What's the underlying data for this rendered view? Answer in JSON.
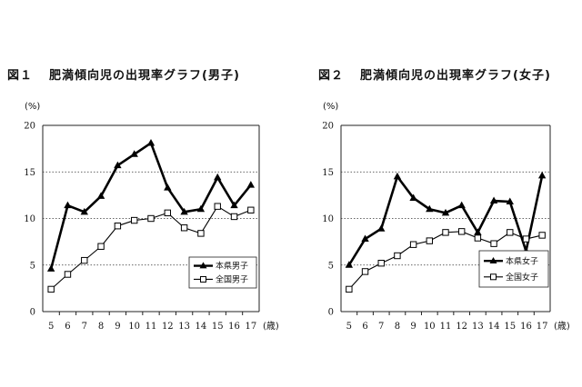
{
  "figures": [
    {
      "number": "図１",
      "title": "肥満傾向児の出現率グラフ(男子)"
    },
    {
      "number": "図２",
      "title": "肥満傾向児の出現率グラフ(女子)"
    }
  ],
  "chart_data": [
    {
      "type": "line",
      "title": "肥満傾向児の出現率グラフ(男子)",
      "ylabel": "(%)",
      "xlabel": "(歳)",
      "x": [
        5,
        6,
        7,
        8,
        9,
        10,
        11,
        12,
        13,
        14,
        15,
        16,
        17
      ],
      "ylim": [
        0,
        20
      ],
      "yticks": [
        0,
        5,
        10,
        15,
        20
      ],
      "grid": "dotted horizontal at 5, 10, 15; solid at 20",
      "legend_position": "bottom-right",
      "series": [
        {
          "name": "本県男子",
          "marker": "filled-triangle",
          "line": "thick",
          "values": [
            4.6,
            11.4,
            10.7,
            12.4,
            15.7,
            16.9,
            18.1,
            13.3,
            10.7,
            11.0,
            14.4,
            11.4,
            13.6
          ]
        },
        {
          "name": "全国男子",
          "marker": "open-square",
          "line": "thin",
          "values": [
            2.4,
            4.0,
            5.5,
            7.0,
            9.2,
            9.8,
            10.0,
            10.6,
            9.0,
            8.4,
            11.3,
            10.2,
            10.9
          ]
        }
      ]
    },
    {
      "type": "line",
      "title": "肥満傾向児の出現率グラフ(女子)",
      "ylabel": "(%)",
      "xlabel": "(歳)",
      "x": [
        5,
        6,
        7,
        8,
        9,
        10,
        11,
        12,
        13,
        14,
        15,
        16,
        17
      ],
      "ylim": [
        0,
        20
      ],
      "yticks": [
        0,
        5,
        10,
        15,
        20
      ],
      "grid": "dotted horizontal at 5, 10, 15; solid at 20",
      "legend_position": "bottom-right",
      "series": [
        {
          "name": "本県女子",
          "marker": "filled-triangle",
          "line": "thick",
          "values": [
            5.0,
            7.8,
            8.9,
            14.5,
            12.2,
            11.0,
            10.6,
            11.4,
            8.5,
            11.9,
            11.8,
            6.5,
            14.6
          ]
        },
        {
          "name": "全国女子",
          "marker": "open-square",
          "line": "thin",
          "values": [
            2.4,
            4.3,
            5.2,
            6.0,
            7.2,
            7.6,
            8.5,
            8.6,
            7.9,
            7.3,
            8.5,
            7.8,
            8.2
          ]
        }
      ]
    }
  ]
}
